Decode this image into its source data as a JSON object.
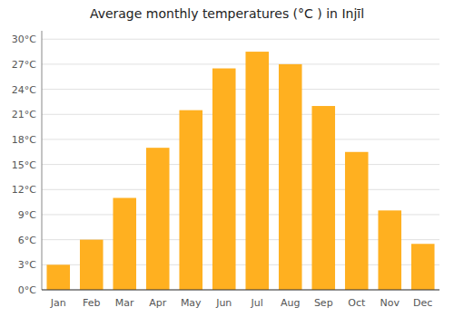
{
  "chart_data": {
    "type": "bar",
    "title": "Average monthly temperatures (°C ) in Injīl",
    "categories": [
      "Jan",
      "Feb",
      "Mar",
      "Apr",
      "May",
      "Jun",
      "Jul",
      "Aug",
      "Sep",
      "Oct",
      "Nov",
      "Dec"
    ],
    "values": [
      3,
      6,
      11,
      17,
      21.5,
      26.5,
      28.5,
      27,
      22,
      16.5,
      9.5,
      5.5
    ],
    "color": "#FFB020",
    "ylim": [
      0,
      31
    ],
    "yticks": [
      {
        "value": 0,
        "label": "0°C"
      },
      {
        "value": 3,
        "label": "3°C"
      },
      {
        "value": 6,
        "label": "6°C"
      },
      {
        "value": 9,
        "label": "9°C"
      },
      {
        "value": 12,
        "label": "12°C"
      },
      {
        "value": 15,
        "label": "15°C"
      },
      {
        "value": 18,
        "label": "18°C"
      },
      {
        "value": 21,
        "label": "21°C"
      },
      {
        "value": 24,
        "label": "24°C"
      },
      {
        "value": 27,
        "label": "27°C"
      },
      {
        "value": 30,
        "label": "30°C"
      }
    ],
    "grid": true
  }
}
